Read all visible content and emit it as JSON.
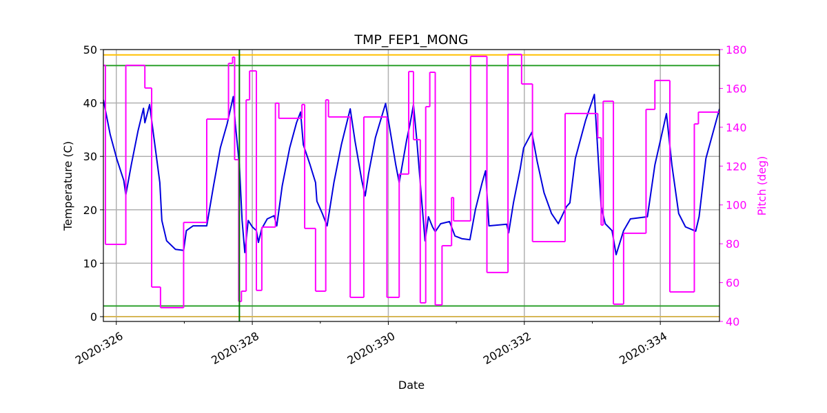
{
  "chart_data": {
    "type": "line",
    "title": "TMP_FEP1_MONG",
    "xlabel": "Date",
    "ylabel": "Temperature (C)",
    "y2label": "Pitch (deg)",
    "grid": true,
    "xlim": [
      325.81,
      334.87
    ],
    "xticks": [
      {
        "value": 326,
        "label": "2020:326"
      },
      {
        "value": 328,
        "label": "2020:328"
      },
      {
        "value": 330,
        "label": "2020:330"
      },
      {
        "value": 332,
        "label": "2020:332"
      },
      {
        "value": 334,
        "label": "2020:334"
      }
    ],
    "xminorticks": [
      327,
      329,
      331,
      333
    ],
    "ylim": [
      -0.9,
      50
    ],
    "yticks": [
      0,
      10,
      20,
      30,
      40,
      50
    ],
    "y2lim": [
      40,
      180
    ],
    "y2ticks": [
      40,
      60,
      80,
      100,
      120,
      140,
      160,
      180
    ],
    "y2color": "#ff00ff",
    "hlines": [
      {
        "value": 49,
        "color": "#ffc000"
      },
      {
        "value": 47,
        "color": "#2ca02c"
      },
      {
        "value": 2,
        "color": "#2ca02c"
      },
      {
        "value": 0,
        "color": "#d6b656"
      }
    ],
    "vlines": [
      {
        "value": 327.81,
        "color": "#007700"
      }
    ],
    "series": [
      {
        "color": "#0000dd",
        "x": [
          325.81,
          325.91,
          326.01,
          326.11,
          326.14,
          326.22,
          326.32,
          326.4,
          326.42,
          326.49,
          326.54,
          326.64,
          326.67,
          326.74,
          326.87,
          326.99,
          327.03,
          327.13,
          327.33,
          327.43,
          327.53,
          327.63,
          327.72,
          327.75,
          327.81,
          327.85,
          327.89,
          327.94,
          328.0,
          328.06,
          328.09,
          328.14,
          328.22,
          328.32,
          328.36,
          328.44,
          328.55,
          328.65,
          328.71,
          328.75,
          328.85,
          328.93,
          328.95,
          329.03,
          329.1,
          329.2,
          329.31,
          329.44,
          329.51,
          329.61,
          329.66,
          329.71,
          329.81,
          329.96,
          330.01,
          330.11,
          330.16,
          330.27,
          330.32,
          330.37,
          330.42,
          330.49,
          330.54,
          330.57,
          330.59,
          330.65,
          330.69,
          330.77,
          330.9,
          330.98,
          331.08,
          331.2,
          331.28,
          331.38,
          331.43,
          331.48,
          331.74,
          331.77,
          331.84,
          331.94,
          331.99,
          332.11,
          332.19,
          332.29,
          332.4,
          332.5,
          332.62,
          332.67,
          332.75,
          332.9,
          333.03,
          333.13,
          333.19,
          333.29,
          333.35,
          333.46,
          333.56,
          333.81,
          333.92,
          334.09,
          334.17,
          334.27,
          334.37,
          334.52,
          334.57,
          334.67,
          334.87
        ],
        "values": [
          40.6,
          34.1,
          29.4,
          25.5,
          22.8,
          28.4,
          34.8,
          39,
          36.3,
          39.7,
          34.8,
          25.1,
          18,
          14.2,
          12.6,
          12.4,
          16.1,
          17,
          17,
          24.5,
          31.6,
          36.1,
          41.2,
          36.1,
          28.4,
          18,
          12,
          18,
          16.8,
          16.1,
          13.9,
          16.5,
          18.3,
          18.9,
          17,
          24.5,
          31.6,
          36.3,
          38.3,
          32.2,
          28.4,
          25.1,
          21.6,
          19.3,
          17,
          25.1,
          32.2,
          38.9,
          32.9,
          25.5,
          22.6,
          26.8,
          33.5,
          39.9,
          36.1,
          28.4,
          25.1,
          33.1,
          36.1,
          39.7,
          32.9,
          21.9,
          14.2,
          16.8,
          18.7,
          16.8,
          15.9,
          17.4,
          17.8,
          15.1,
          14.6,
          14.4,
          20,
          25.1,
          27.3,
          17,
          17.3,
          15.7,
          21.3,
          27.7,
          31.6,
          34.5,
          29,
          23.2,
          19.3,
          17.4,
          20.6,
          21.3,
          29.6,
          36.7,
          41.6,
          20.6,
          17.4,
          16.1,
          11.6,
          16.1,
          18.3,
          18.7,
          28.4,
          38,
          28.4,
          19.3,
          16.8,
          16,
          18.7,
          29.6,
          38.9
        ]
      },
      {
        "color": "#ff00ff",
        "axis": "y2",
        "step": true,
        "x": [
          325.81,
          325.84,
          326.14,
          326.42,
          326.52,
          326.65,
          326.99,
          327.33,
          327.65,
          327.71,
          327.74,
          327.8,
          327.84,
          327.91,
          327.96,
          328.06,
          328.14,
          328.34,
          328.39,
          328.73,
          328.77,
          328.93,
          329.08,
          329.12,
          329.44,
          329.64,
          329.98,
          330.16,
          330.3,
          330.37,
          330.47,
          330.55,
          330.61,
          330.69,
          330.79,
          330.93,
          330.96,
          331.21,
          331.45,
          331.76,
          331.96,
          332.12,
          332.6,
          333.08,
          333.13,
          333.16,
          333.31,
          333.46,
          333.79,
          333.92,
          334.14,
          334.5,
          334.56,
          334.87
        ],
        "values": [
          171.9,
          79.7,
          171.9,
          160.2,
          57.7,
          47.1,
          91,
          144.2,
          172.9,
          176.1,
          123.3,
          50.3,
          55.6,
          154.1,
          169,
          56,
          88.6,
          152.4,
          144.6,
          151.7,
          87.9,
          55.6,
          154.1,
          145.3,
          52.4,
          145.3,
          52.4,
          115.9,
          168.7,
          133.6,
          49.6,
          150.6,
          168.3,
          48.5,
          79,
          103.8,
          91.8,
          176.5,
          65.2,
          177.5,
          162.3,
          81.1,
          147.1,
          134.6,
          89.6,
          153.4,
          48.9,
          85.4,
          149.2,
          164.1,
          55.2,
          141.7,
          147.8,
          147.8
        ]
      }
    ]
  }
}
